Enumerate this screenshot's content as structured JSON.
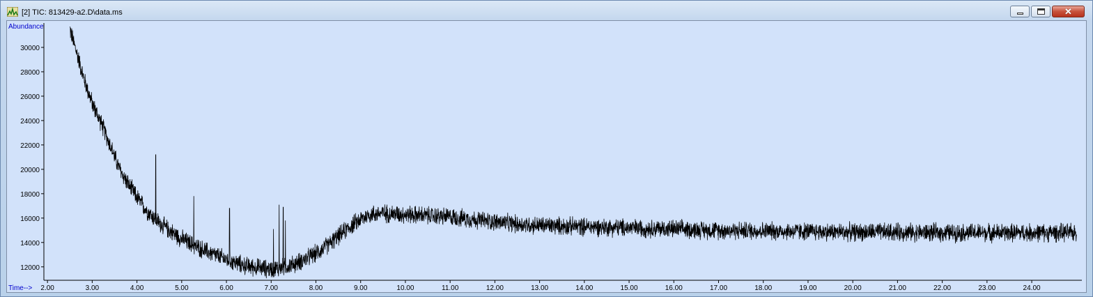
{
  "window": {
    "title": "[2] TIC: 813429-a2.D\\data.ms",
    "icon": "chromatogram-icon",
    "controls": {
      "minimize": "minimize-icon",
      "maximize": "maximize-icon",
      "close": "close-icon"
    }
  },
  "chart_data": {
    "type": "line",
    "ylabel": "Abundance",
    "xlabel": "Time-->",
    "xlim": [
      1.92,
      25.12
    ],
    "ylim": [
      10900,
      32000
    ],
    "x_ticks": [
      2.0,
      3.0,
      4.0,
      5.0,
      6.0,
      7.0,
      8.0,
      9.0,
      10.0,
      11.0,
      12.0,
      13.0,
      14.0,
      15.0,
      16.0,
      17.0,
      18.0,
      19.0,
      20.0,
      21.0,
      22.0,
      23.0,
      24.0
    ],
    "x_tick_labels": [
      "2.00",
      "3.00",
      "4.00",
      "5.00",
      "6.00",
      "7.00",
      "8.00",
      "9.00",
      "10.00",
      "11.00",
      "12.00",
      "13.00",
      "14.00",
      "15.00",
      "16.00",
      "17.00",
      "18.00",
      "19.00",
      "20.00",
      "21.00",
      "22.00",
      "23.00",
      "24.00"
    ],
    "y_ticks": [
      12000,
      14000,
      16000,
      18000,
      20000,
      22000,
      24000,
      26000,
      28000,
      30000
    ],
    "y_tick_labels": [
      "12000",
      "14000",
      "16000",
      "18000",
      "20000",
      "22000",
      "24000",
      "26000",
      "28000",
      "30000"
    ],
    "series": [
      {
        "color": "#000000",
        "x": [
          2.5,
          2.6,
          2.7,
          2.8,
          3.0,
          3.2,
          3.4,
          3.6,
          3.8,
          4.0,
          4.2,
          4.5,
          4.8,
          5.0,
          5.3,
          5.6,
          6.0,
          6.4,
          6.8,
          7.0,
          7.2,
          7.5,
          7.8,
          8.0,
          8.2,
          8.4,
          8.6,
          8.8,
          9.0,
          9.2,
          9.5,
          10.0,
          10.5,
          11.0,
          11.5,
          12.0,
          12.5,
          13.0,
          14.0,
          15.0,
          16.0,
          17.0,
          18.0,
          19.0,
          20.0,
          21.0,
          22.0,
          23.0,
          24.0,
          25.0
        ],
        "y": [
          31500,
          30200,
          29000,
          27600,
          25400,
          23800,
          22000,
          20100,
          18800,
          17700,
          16700,
          15600,
          14800,
          14300,
          13700,
          13200,
          12600,
          12100,
          11900,
          11800,
          11900,
          12200,
          12700,
          13100,
          13600,
          14200,
          14800,
          15400,
          15900,
          16300,
          16400,
          16300,
          16200,
          16100,
          15900,
          15700,
          15500,
          15400,
          15300,
          15200,
          15100,
          15000,
          14950,
          14900,
          14850,
          14850,
          14800,
          14800,
          14800,
          14800
        ],
        "noise": 600,
        "spikes": [
          [
            4.42,
            21200
          ],
          [
            5.27,
            17800
          ],
          [
            6.07,
            16800
          ],
          [
            7.05,
            15100
          ],
          [
            7.18,
            17100
          ],
          [
            7.27,
            16900
          ],
          [
            7.32,
            15800
          ]
        ]
      }
    ]
  }
}
